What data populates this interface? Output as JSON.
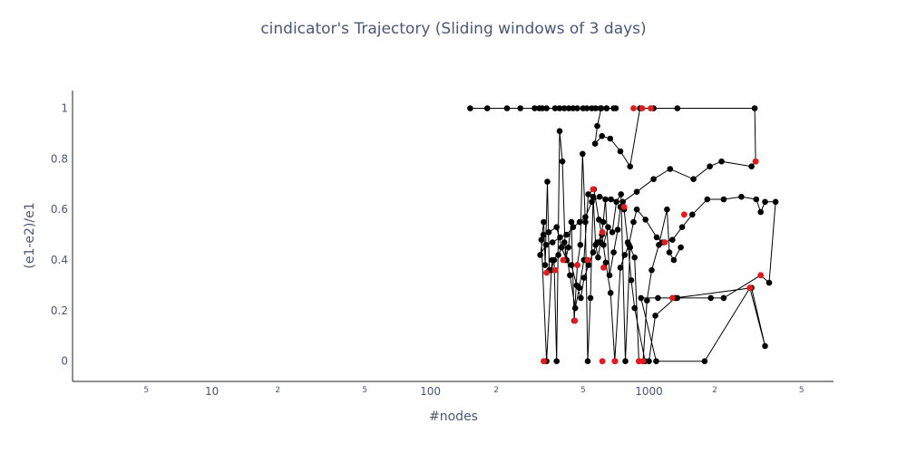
{
  "chart_data": {
    "type": "scatter",
    "title": "cindicator's Trajectory (Sliding windows of 3 days)",
    "xlabel": "#nodes",
    "ylabel": "(e1-e2)/e1",
    "x_scale": "log",
    "xlim": [
      2.3,
      7000
    ],
    "ylim": [
      -0.08,
      1.07
    ],
    "x_ticks": [
      {
        "value": 5,
        "label": "5",
        "minor": true
      },
      {
        "value": 10,
        "label": "10",
        "minor": false
      },
      {
        "value": 20,
        "label": "2",
        "minor": true
      },
      {
        "value": 50,
        "label": "5",
        "minor": true
      },
      {
        "value": 100,
        "label": "100",
        "minor": false
      },
      {
        "value": 200,
        "label": "2",
        "minor": true
      },
      {
        "value": 500,
        "label": "5",
        "minor": true
      },
      {
        "value": 1000,
        "label": "1000",
        "minor": false
      },
      {
        "value": 2000,
        "label": "2",
        "minor": true
      },
      {
        "value": 5000,
        "label": "5",
        "minor": true
      }
    ],
    "y_ticks": [
      {
        "value": 0,
        "label": "0"
      },
      {
        "value": 0.2,
        "label": "0.2"
      },
      {
        "value": 0.4,
        "label": "0.4"
      },
      {
        "value": 0.6,
        "label": "0.6"
      },
      {
        "value": 0.8,
        "label": "0.8"
      },
      {
        "value": 1,
        "label": "1"
      }
    ],
    "grid": false,
    "colors": {
      "line": "#000000",
      "marker": "#000000",
      "highlight": "#e41a1c"
    },
    "series": [
      {
        "values": [
          [
            152,
            1
          ],
          [
            182,
            1
          ],
          [
            224,
            1
          ],
          [
            258,
            1
          ],
          [
            300,
            1
          ],
          [
            315,
            1
          ],
          [
            325,
            1
          ],
          [
            340,
            1
          ],
          [
            372,
            1
          ],
          [
            390,
            1
          ],
          [
            410,
            1
          ],
          [
            430,
            1
          ],
          [
            450,
            1
          ],
          [
            470,
            1
          ],
          [
            500,
            1
          ],
          [
            520,
            1
          ],
          [
            548,
            1
          ],
          [
            570,
            1
          ],
          [
            600,
            1
          ],
          [
            640,
            1
          ],
          [
            690,
            1
          ],
          [
            705,
            1
          ],
          [
            640,
            1
          ],
          [
            605,
            1
          ],
          [
            580,
            0.93
          ],
          [
            567,
            0.86
          ],
          [
            610,
            0.89
          ],
          [
            665,
            0.88
          ],
          [
            740,
            0.83
          ],
          [
            820,
            0.77
          ],
          [
            910,
            1
          ],
          [
            1050,
            1
          ],
          [
            1350,
            1
          ],
          [
            3050,
            1
          ],
          [
            3080,
            0.79
          ],
          [
            2950,
            0.77
          ],
          [
            2150,
            0.79
          ],
          [
            1900,
            0.77
          ],
          [
            1600,
            0.72
          ],
          [
            1250,
            0.76
          ],
          [
            1050,
            0.72
          ],
          [
            880,
            0.67
          ],
          [
            760,
            0.63
          ],
          [
            670,
            0.64
          ],
          [
            595,
            0.65
          ],
          [
            548,
            0.63
          ],
          [
            512,
            0.57
          ],
          [
            482,
            0.55
          ],
          [
            450,
            0.53
          ],
          [
            420,
            0.5
          ],
          [
            392,
            0.49
          ],
          [
            362,
            0.47
          ],
          [
            338,
            0.46
          ],
          [
            318,
            0.42
          ],
          [
            329,
            0.5
          ],
          [
            348,
            0.51
          ],
          [
            378,
            0.53
          ],
          [
            398,
            0.45
          ],
          [
            420,
            0.4
          ],
          [
            442,
            0.38
          ],
          [
            467,
            0.3
          ],
          [
            488,
            0.25
          ],
          [
            505,
            0.33
          ],
          [
            530,
            0.38
          ],
          [
            555,
            0.43
          ],
          [
            580,
            0.47
          ],
          [
            610,
            0.5
          ],
          [
            635,
            0.39
          ],
          [
            668,
            0.27
          ],
          [
            698,
            0
          ],
          [
            740,
            0.37
          ],
          [
            775,
            0.42
          ],
          [
            810,
            0.46
          ],
          [
            850,
            0.55
          ],
          [
            880,
            0.6
          ],
          [
            965,
            0.56
          ],
          [
            1085,
            0.49
          ],
          [
            1160,
            0.47
          ],
          [
            1280,
            0.48
          ],
          [
            1420,
            0.53
          ],
          [
            1580,
            0.58
          ],
          [
            1850,
            0.64
          ],
          [
            2200,
            0.64
          ],
          [
            2650,
            0.65
          ],
          [
            3100,
            0.64
          ],
          [
            3250,
            0.59
          ],
          [
            3400,
            0.63
          ],
          [
            3800,
            0.63
          ],
          [
            3550,
            0.31
          ],
          [
            3250,
            0.34
          ],
          [
            2200,
            0.25
          ],
          [
            1920,
            0.25
          ],
          [
            1350,
            0.25
          ],
          [
            1100,
            0.25
          ],
          [
            920,
            0.25
          ],
          [
            1080,
            0
          ],
          [
            1800,
            0
          ],
          [
            2900,
            0.29
          ],
          [
            3400,
            0.06
          ],
          [
            2950,
            0.29
          ],
          [
            1320,
            0.25
          ],
          [
            1070,
            0.18
          ],
          [
            1000,
            0
          ],
          [
            960,
            0
          ],
          [
            860,
            0.21
          ],
          [
            830,
            0.32
          ],
          [
            800,
            0.47
          ],
          [
            770,
            0.6
          ],
          [
            740,
            0.61
          ],
          [
            720,
            0.52
          ],
          [
            690,
            0.43
          ],
          [
            660,
            0.34
          ],
          [
            632,
            0.64
          ],
          [
            618,
            0.55
          ],
          [
            600,
            0.47
          ],
          [
            585,
            0.41
          ],
          [
            570,
            0.46
          ],
          [
            556,
            0.65
          ],
          [
            540,
            0.25
          ],
          [
            525,
            0
          ],
          [
            512,
            0.55
          ],
          [
            497,
            0.82
          ],
          [
            485,
            0.46
          ],
          [
            470,
            0.38
          ],
          [
            455,
            0.16
          ],
          [
            442,
            0.55
          ],
          [
            428,
            0.45
          ],
          [
            415,
            0.4
          ],
          [
            402,
            0.79
          ],
          [
            390,
            0.91
          ],
          [
            378,
            0
          ],
          [
            368,
            0.4
          ],
          [
            357,
            0.36
          ],
          [
            350,
            0.36
          ],
          [
            343,
            0.71
          ],
          [
            335,
            0.38
          ],
          [
            330,
            0.55
          ],
          [
            322,
            0.48
          ],
          [
            340,
            0
          ],
          [
            360,
            0.4
          ],
          [
            385,
            0.42
          ],
          [
            410,
            0.47
          ],
          [
            435,
            0.34
          ],
          [
            460,
            0.21
          ],
          [
            480,
            0.29
          ],
          [
            504,
            0.4
          ],
          [
            528,
            0.66
          ],
          [
            560,
            0.68
          ],
          [
            590,
            0.56
          ],
          [
            620,
            0.46
          ],
          [
            650,
            0.53
          ],
          [
            680,
            0.51
          ],
          [
            710,
            0.63
          ],
          [
            745,
            0.66
          ],
          [
            780,
            0
          ],
          [
            820,
            0.45
          ],
          [
            860,
            0.41
          ],
          [
            900,
            0
          ],
          [
            940,
            0
          ],
          [
            980,
            0.24
          ],
          [
            1030,
            0.36
          ],
          [
            1110,
            0.46
          ],
          [
            1210,
            0.6
          ],
          [
            1240,
            0.43
          ],
          [
            1300,
            0.4
          ],
          [
            1400,
            0.45
          ]
        ]
      }
    ],
    "highlight_points": [
      [
        340,
        0.35
      ],
      [
        372,
        0.36
      ],
      [
        405,
        0.4
      ],
      [
        458,
        0.16
      ],
      [
        470,
        0.38
      ],
      [
        525,
        0.4
      ],
      [
        555,
        0.68
      ],
      [
        612,
        0.51
      ],
      [
        620,
        0.37
      ],
      [
        612,
        0
      ],
      [
        700,
        0
      ],
      [
        770,
        0.61
      ],
      [
        850,
        1
      ],
      [
        900,
        0
      ],
      [
        930,
        1
      ],
      [
        1020,
        1
      ],
      [
        1180,
        0.47
      ],
      [
        1280,
        0.25
      ],
      [
        1450,
        0.58
      ],
      [
        2900,
        0.29
      ],
      [
        3080,
        0.79
      ],
      [
        3250,
        0.34
      ],
      [
        940,
        0
      ],
      [
        330,
        0
      ]
    ]
  }
}
